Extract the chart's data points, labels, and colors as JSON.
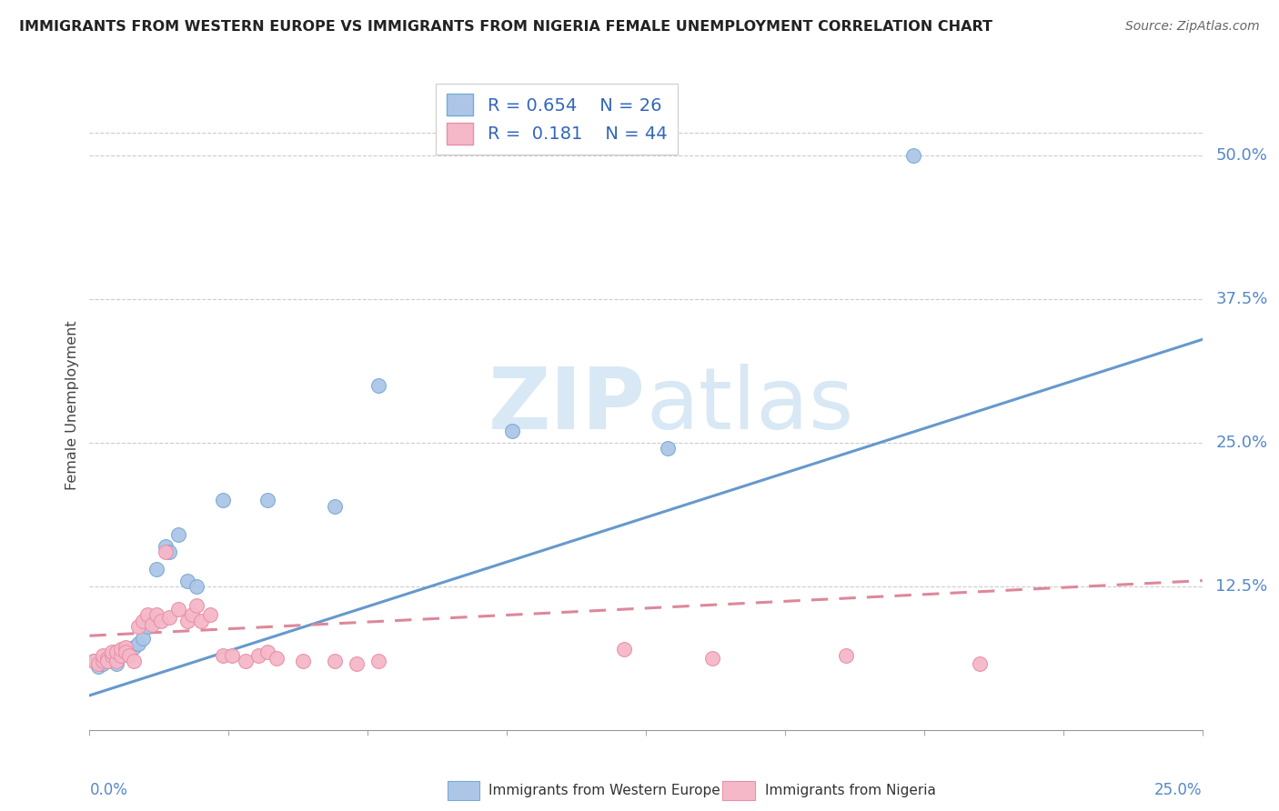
{
  "title": "IMMIGRANTS FROM WESTERN EUROPE VS IMMIGRANTS FROM NIGERIA FEMALE UNEMPLOYMENT CORRELATION CHART",
  "source": "Source: ZipAtlas.com",
  "ylabel": "Female Unemployment",
  "right_ytick_labels": [
    "12.5%",
    "25.0%",
    "37.5%",
    "50.0%"
  ],
  "right_ytick_values": [
    0.125,
    0.25,
    0.375,
    0.5
  ],
  "legend1_R": "0.654",
  "legend1_N": "26",
  "legend2_R": "0.181",
  "legend2_N": "44",
  "color_blue": "#adc6e8",
  "color_pink": "#f5b8c8",
  "edge_blue": "#7aaad4",
  "edge_pink": "#e890a8",
  "line_blue": "#6699cc",
  "line_pink": "#dd8899",
  "watermark_color": "#d8e8f4",
  "blue_scatter_x": [
    0.001,
    0.002,
    0.003,
    0.004,
    0.005,
    0.006,
    0.007,
    0.008,
    0.009,
    0.01,
    0.011,
    0.012,
    0.013,
    0.015,
    0.017,
    0.018,
    0.02,
    0.022,
    0.024,
    0.03,
    0.04,
    0.055,
    0.065,
    0.095,
    0.13,
    0.185
  ],
  "blue_scatter_y": [
    0.06,
    0.055,
    0.058,
    0.06,
    0.062,
    0.058,
    0.065,
    0.068,
    0.07,
    0.072,
    0.075,
    0.08,
    0.09,
    0.14,
    0.16,
    0.155,
    0.17,
    0.13,
    0.125,
    0.2,
    0.2,
    0.195,
    0.3,
    0.26,
    0.245,
    0.5
  ],
  "pink_scatter_x": [
    0.001,
    0.002,
    0.003,
    0.003,
    0.004,
    0.004,
    0.005,
    0.005,
    0.006,
    0.006,
    0.007,
    0.007,
    0.008,
    0.008,
    0.009,
    0.01,
    0.011,
    0.012,
    0.013,
    0.014,
    0.015,
    0.016,
    0.017,
    0.018,
    0.02,
    0.022,
    0.023,
    0.024,
    0.025,
    0.027,
    0.03,
    0.032,
    0.035,
    0.038,
    0.04,
    0.042,
    0.048,
    0.055,
    0.06,
    0.065,
    0.12,
    0.14,
    0.17,
    0.2
  ],
  "pink_scatter_y": [
    0.06,
    0.058,
    0.06,
    0.065,
    0.062,
    0.06,
    0.065,
    0.068,
    0.06,
    0.068,
    0.065,
    0.07,
    0.072,
    0.068,
    0.065,
    0.06,
    0.09,
    0.095,
    0.1,
    0.092,
    0.1,
    0.095,
    0.155,
    0.098,
    0.105,
    0.095,
    0.1,
    0.108,
    0.095,
    0.1,
    0.065,
    0.065,
    0.06,
    0.065,
    0.068,
    0.062,
    0.06,
    0.06,
    0.058,
    0.06,
    0.07,
    0.062,
    0.065,
    0.058
  ],
  "blue_line_x0": 0.0,
  "blue_line_y0": 0.03,
  "blue_line_x1": 0.25,
  "blue_line_y1": 0.34,
  "pink_line_x0": 0.0,
  "pink_line_y0": 0.082,
  "pink_line_x1": 0.25,
  "pink_line_y1": 0.13,
  "xmin": 0.0,
  "xmax": 0.25,
  "ymin": 0.0,
  "ymax": 0.565
}
